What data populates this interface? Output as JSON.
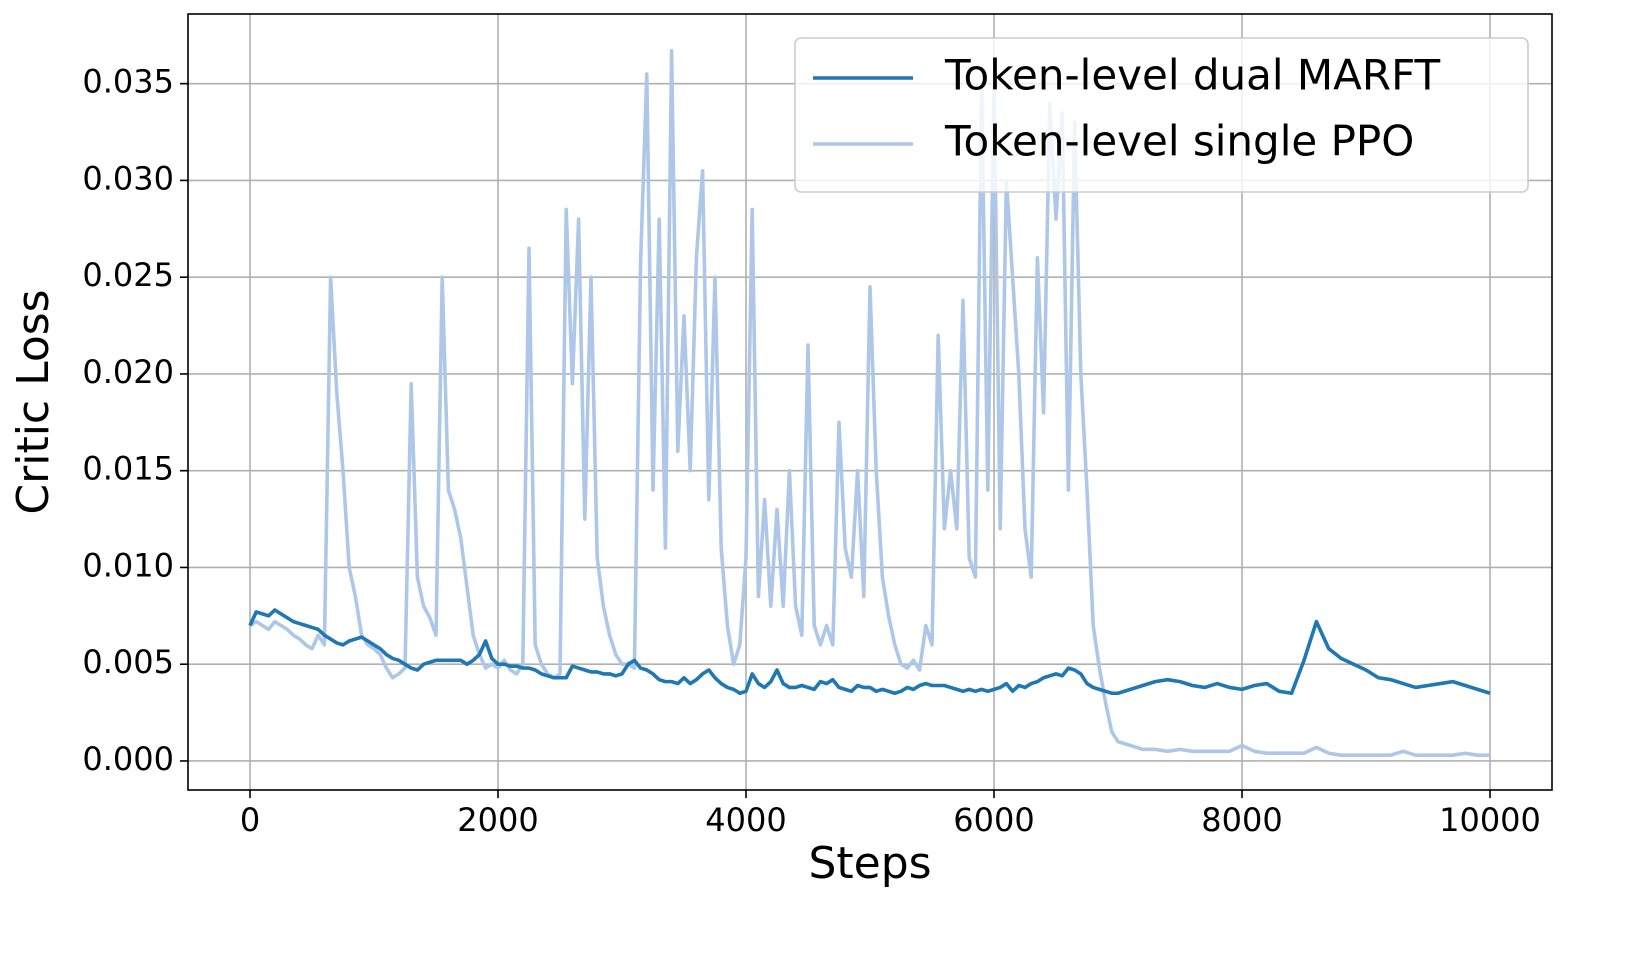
{
  "chart_data": {
    "type": "line",
    "xlabel": "Steps",
    "ylabel": "Critic Loss",
    "xlim": [
      -500,
      10500
    ],
    "ylim": [
      -0.0015,
      0.0386
    ],
    "xticks": [
      0,
      2000,
      4000,
      6000,
      8000,
      10000
    ],
    "yticks": [
      {
        "value": 0,
        "label": "0.000"
      },
      {
        "value": 0.005,
        "label": "0.005"
      },
      {
        "value": 0.01,
        "label": "0.010"
      },
      {
        "value": 0.015,
        "label": "0.015"
      },
      {
        "value": 0.02,
        "label": "0.020"
      },
      {
        "value": 0.025,
        "label": "0.025"
      },
      {
        "value": 0.03,
        "label": "0.030"
      },
      {
        "value": 0.035,
        "label": "0.035"
      }
    ],
    "grid": true,
    "legend": "upper right",
    "x": [
      0,
      50,
      100,
      150,
      200,
      250,
      300,
      350,
      400,
      450,
      500,
      550,
      600,
      650,
      700,
      750,
      800,
      850,
      900,
      950,
      1000,
      1050,
      1100,
      1150,
      1200,
      1250,
      1300,
      1350,
      1400,
      1450,
      1500,
      1550,
      1600,
      1650,
      1700,
      1750,
      1800,
      1850,
      1900,
      1950,
      2000,
      2050,
      2100,
      2150,
      2200,
      2250,
      2300,
      2350,
      2400,
      2450,
      2500,
      2550,
      2600,
      2650,
      2700,
      2750,
      2800,
      2850,
      2900,
      2950,
      3000,
      3050,
      3100,
      3150,
      3200,
      3250,
      3300,
      3350,
      3400,
      3450,
      3500,
      3550,
      3600,
      3650,
      3700,
      3750,
      3800,
      3850,
      3900,
      3950,
      4000,
      4050,
      4100,
      4150,
      4200,
      4250,
      4300,
      4350,
      4400,
      4450,
      4500,
      4550,
      4600,
      4650,
      4700,
      4750,
      4800,
      4850,
      4900,
      4950,
      5000,
      5050,
      5100,
      5150,
      5200,
      5250,
      5300,
      5350,
      5400,
      5450,
      5500,
      5550,
      5600,
      5650,
      5700,
      5750,
      5800,
      5850,
      5900,
      5950,
      6000,
      6050,
      6100,
      6150,
      6200,
      6250,
      6300,
      6350,
      6400,
      6450,
      6500,
      6550,
      6600,
      6650,
      6700,
      6750,
      6800,
      6850,
      6900,
      6950,
      7000,
      7100,
      7200,
      7300,
      7400,
      7500,
      7600,
      7700,
      7800,
      7900,
      8000,
      8100,
      8200,
      8300,
      8400,
      8500,
      8600,
      8700,
      8800,
      8900,
      9000,
      9100,
      9200,
      9300,
      9400,
      9500,
      9600,
      9700,
      9800,
      9900,
      10000
    ],
    "series": [
      {
        "name": "Token-level dual MARFT",
        "color": "#1f77b4",
        "values": [
          0.007,
          0.0077,
          0.0076,
          0.0075,
          0.0078,
          0.0076,
          0.0074,
          0.0072,
          0.0071,
          0.007,
          0.0069,
          0.0068,
          0.0065,
          0.0063,
          0.0061,
          0.006,
          0.0062,
          0.0063,
          0.0064,
          0.0062,
          0.006,
          0.0058,
          0.0055,
          0.0053,
          0.0052,
          0.005,
          0.0048,
          0.0047,
          0.005,
          0.0051,
          0.0052,
          0.0052,
          0.0052,
          0.0052,
          0.0052,
          0.005,
          0.0052,
          0.0055,
          0.0062,
          0.0053,
          0.005,
          0.005,
          0.0049,
          0.0049,
          0.0048,
          0.0048,
          0.0047,
          0.0045,
          0.0044,
          0.0043,
          0.0043,
          0.0043,
          0.0049,
          0.0048,
          0.0047,
          0.0046,
          0.0046,
          0.0045,
          0.0045,
          0.0044,
          0.0045,
          0.005,
          0.0052,
          0.0048,
          0.0047,
          0.0045,
          0.0042,
          0.0041,
          0.0041,
          0.004,
          0.0043,
          0.004,
          0.0042,
          0.0045,
          0.0047,
          0.0043,
          0.004,
          0.0038,
          0.0037,
          0.0035,
          0.0036,
          0.0045,
          0.004,
          0.0038,
          0.0041,
          0.0047,
          0.004,
          0.0038,
          0.0038,
          0.0039,
          0.0038,
          0.0037,
          0.0041,
          0.004,
          0.0042,
          0.0038,
          0.0037,
          0.0036,
          0.0039,
          0.0038,
          0.0038,
          0.0036,
          0.0037,
          0.0036,
          0.0035,
          0.0036,
          0.0038,
          0.0037,
          0.0039,
          0.004,
          0.0039,
          0.0039,
          0.0039,
          0.0038,
          0.0037,
          0.0036,
          0.0037,
          0.0036,
          0.0037,
          0.0036,
          0.0037,
          0.0038,
          0.004,
          0.0036,
          0.0039,
          0.0038,
          0.004,
          0.0041,
          0.0043,
          0.0044,
          0.0045,
          0.0044,
          0.0048,
          0.0047,
          0.0045,
          0.004,
          0.0038,
          0.0037,
          0.0036,
          0.0035,
          0.0035,
          0.0037,
          0.0039,
          0.0041,
          0.0042,
          0.0041,
          0.0039,
          0.0038,
          0.004,
          0.0038,
          0.0037,
          0.0039,
          0.004,
          0.0036,
          0.0035,
          0.0052,
          0.0072,
          0.0058,
          0.0053,
          0.005,
          0.0047,
          0.0043,
          0.0042,
          0.004,
          0.0038,
          0.0039,
          0.004,
          0.0041,
          0.0039,
          0.0037,
          0.0035
        ]
      },
      {
        "name": "Token-level single PPO",
        "color": "#aec7e8",
        "values": [
          0.007,
          0.0072,
          0.007,
          0.0068,
          0.0072,
          0.007,
          0.0068,
          0.0065,
          0.0063,
          0.006,
          0.0058,
          0.0065,
          0.006,
          0.025,
          0.019,
          0.015,
          0.01,
          0.0085,
          0.0065,
          0.006,
          0.0058,
          0.0055,
          0.0048,
          0.0043,
          0.0045,
          0.0048,
          0.0195,
          0.0095,
          0.008,
          0.0074,
          0.0065,
          0.025,
          0.014,
          0.013,
          0.0115,
          0.009,
          0.0065,
          0.0055,
          0.0048,
          0.005,
          0.0048,
          0.0052,
          0.0047,
          0.0045,
          0.005,
          0.0265,
          0.006,
          0.005,
          0.0045,
          0.0043,
          0.0045,
          0.0285,
          0.0195,
          0.028,
          0.0125,
          0.025,
          0.0105,
          0.008,
          0.0065,
          0.0055,
          0.005,
          0.005,
          0.0048,
          0.0258,
          0.0355,
          0.014,
          0.028,
          0.011,
          0.0367,
          0.016,
          0.023,
          0.015,
          0.026,
          0.0305,
          0.0135,
          0.025,
          0.011,
          0.007,
          0.005,
          0.006,
          0.0105,
          0.0285,
          0.0085,
          0.0135,
          0.008,
          0.013,
          0.008,
          0.015,
          0.008,
          0.0065,
          0.0215,
          0.007,
          0.006,
          0.007,
          0.006,
          0.0175,
          0.011,
          0.0095,
          0.015,
          0.0085,
          0.0245,
          0.015,
          0.0095,
          0.0075,
          0.006,
          0.005,
          0.0048,
          0.0052,
          0.0047,
          0.007,
          0.006,
          0.022,
          0.012,
          0.015,
          0.012,
          0.0238,
          0.0105,
          0.0095,
          0.035,
          0.014,
          0.035,
          0.012,
          0.03,
          0.025,
          0.02,
          0.012,
          0.0095,
          0.026,
          0.018,
          0.034,
          0.028,
          0.0335,
          0.014,
          0.033,
          0.02,
          0.014,
          0.007,
          0.0048,
          0.003,
          0.0015,
          0.001,
          0.0008,
          0.0006,
          0.0006,
          0.0005,
          0.0006,
          0.0005,
          0.0005,
          0.0005,
          0.0005,
          0.0008,
          0.0005,
          0.0004,
          0.0004,
          0.0004,
          0.0004,
          0.0007,
          0.0004,
          0.0003,
          0.0003,
          0.0003,
          0.0003,
          0.0003,
          0.0005,
          0.0003,
          0.0003,
          0.0003,
          0.0003,
          0.0004,
          0.0003,
          0.0003
        ]
      }
    ]
  }
}
